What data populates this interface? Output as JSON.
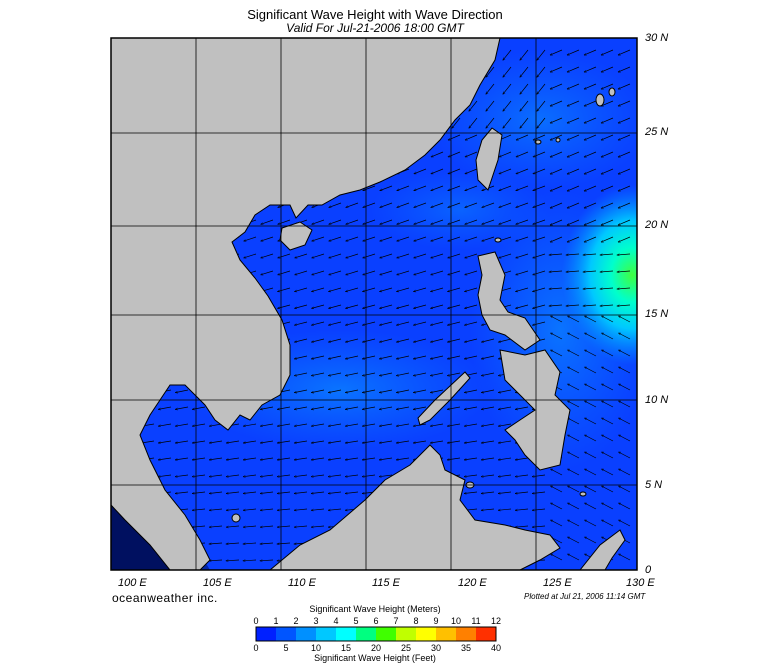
{
  "header": {
    "title": "Significant Wave Height with Wave Direction",
    "subtitle": "Valid For Jul-21-2006 18:00 GMT"
  },
  "map": {
    "lon_range": [
      100,
      130
    ],
    "lat_range": [
      0,
      30
    ],
    "lat_labels": [
      "30 N",
      "25 N",
      "20 N",
      "15 N",
      "10 N",
      "5 N",
      "0"
    ],
    "lon_labels": [
      "100 E",
      "105 E",
      "110 E",
      "115 E",
      "120 E",
      "125 E",
      "130 E"
    ],
    "land_color": "#c0c0c0",
    "grid": true,
    "arrow_direction": "flow toward the west / west-northwest (easterly swell)"
  },
  "footer": {
    "brand": "oceanweather inc.",
    "plotted": "Plotted at Jul 21, 2006 11:14 GMT"
  },
  "colorbar": {
    "title_top": "Significant Wave Height (Meters)",
    "title_bottom": "Significant Wave Height (Feet)",
    "meters_ticks": [
      "0",
      "1",
      "2",
      "3",
      "4",
      "5",
      "6",
      "7",
      "8",
      "9",
      "10",
      "11",
      "12"
    ],
    "feet_ticks": [
      "0",
      "5",
      "10",
      "15",
      "20",
      "25",
      "30",
      "35",
      "40"
    ],
    "colors": [
      "#0020ff",
      "#0055ff",
      "#0090ff",
      "#00c8ff",
      "#00ffff",
      "#00ff80",
      "#40ff00",
      "#c0ff00",
      "#ffff00",
      "#ffc000",
      "#ff8000",
      "#ff3000"
    ]
  }
}
